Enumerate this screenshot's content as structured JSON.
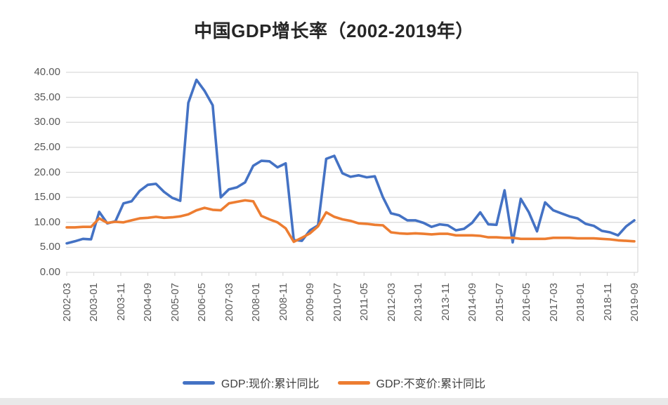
{
  "title": "中国GDP增长率（2002-2019年）",
  "chart_data": {
    "type": "line",
    "title": "中国GDP增长率（2002-2019年）",
    "x_unit": "quarter (YYYY-MM)",
    "categories": [
      "2002-03",
      "2002-06",
      "2002-09",
      "2002-12",
      "2003-03",
      "2003-06",
      "2003-09",
      "2003-12",
      "2004-03",
      "2004-06",
      "2004-09",
      "2004-12",
      "2005-03",
      "2005-06",
      "2005-09",
      "2005-12",
      "2006-03",
      "2006-06",
      "2006-09",
      "2006-12",
      "2007-03",
      "2007-06",
      "2007-09",
      "2007-12",
      "2008-03",
      "2008-06",
      "2008-09",
      "2008-12",
      "2009-03",
      "2009-06",
      "2009-09",
      "2009-12",
      "2010-03",
      "2010-06",
      "2010-09",
      "2010-12",
      "2011-03",
      "2011-06",
      "2011-09",
      "2011-12",
      "2012-03",
      "2012-06",
      "2012-09",
      "2012-12",
      "2013-03",
      "2013-06",
      "2013-09",
      "2013-12",
      "2014-03",
      "2014-06",
      "2014-09",
      "2014-12",
      "2015-03",
      "2015-06",
      "2015-09",
      "2015-12",
      "2016-03",
      "2016-06",
      "2016-09",
      "2016-12",
      "2017-03",
      "2017-06",
      "2017-09",
      "2017-12",
      "2018-03",
      "2018-06",
      "2018-09",
      "2018-12",
      "2019-03",
      "2019-06",
      "2019-09"
    ],
    "series": [
      {
        "name": "GDP:现价:累计同比",
        "color": "#4472C4",
        "values": [
          5.8,
          6.2,
          6.7,
          6.6,
          12.1,
          9.8,
          10.2,
          13.8,
          14.2,
          16.3,
          17.5,
          17.7,
          16.1,
          14.9,
          14.3,
          33.9,
          38.5,
          36.3,
          33.4,
          15.0,
          16.6,
          17.0,
          18.0,
          21.3,
          22.3,
          22.2,
          21.0,
          21.8,
          6.5,
          6.3,
          8.4,
          9.4,
          22.7,
          23.3,
          19.8,
          19.1,
          19.4,
          19.0,
          19.2,
          15.0,
          11.8,
          11.4,
          10.4,
          10.4,
          9.9,
          9.1,
          9.6,
          9.4,
          8.4,
          8.7,
          9.9,
          12.0,
          9.6,
          9.5,
          16.4,
          6.0,
          14.7,
          12.0,
          8.2,
          14.0,
          12.4,
          11.8,
          11.2,
          10.8,
          9.7,
          9.3,
          8.3,
          8.0,
          7.4,
          9.2,
          10.4
        ]
      },
      {
        "name": "GDP:不变价:累计同比",
        "color": "#ED7D31",
        "values": [
          9.0,
          9.0,
          9.1,
          9.1,
          10.8,
          9.9,
          10.1,
          10.0,
          10.4,
          10.8,
          10.9,
          11.1,
          10.9,
          11.0,
          11.2,
          11.6,
          12.4,
          12.9,
          12.5,
          12.4,
          13.8,
          14.1,
          14.4,
          14.2,
          11.3,
          10.6,
          10.0,
          8.8,
          6.1,
          6.9,
          7.8,
          9.2,
          12.0,
          11.1,
          10.6,
          10.3,
          9.8,
          9.7,
          9.5,
          9.4,
          8.0,
          7.8,
          7.7,
          7.8,
          7.7,
          7.6,
          7.7,
          7.7,
          7.4,
          7.4,
          7.4,
          7.3,
          7.0,
          7.0,
          6.9,
          6.9,
          6.7,
          6.7,
          6.7,
          6.7,
          6.9,
          6.9,
          6.9,
          6.8,
          6.8,
          6.8,
          6.7,
          6.6,
          6.4,
          6.3,
          6.2
        ]
      }
    ],
    "ylim": [
      0,
      40
    ],
    "y_tick_step": 5,
    "y_tick_labels": [
      "0.00",
      "5.00",
      "10.00",
      "15.00",
      "20.00",
      "25.00",
      "30.00",
      "35.00",
      "40.00"
    ],
    "x_tick_labels": [
      "2002-03",
      "2003-01",
      "2003-11",
      "2004-09",
      "2005-07",
      "2006-05",
      "2007-03",
      "2008-01",
      "2008-11",
      "2009-09",
      "2010-07",
      "2011-05",
      "2012-03",
      "2013-01",
      "2013-11",
      "2014-09",
      "2015-07",
      "2016-05",
      "2017-03",
      "2018-01",
      "2018-11",
      "2019-09"
    ],
    "x_tick_interval_months": 10,
    "grid": "horizontal",
    "gridline_color": "#D9D9D9",
    "axis_text_color": "#595959",
    "legend_position": "bottom"
  }
}
